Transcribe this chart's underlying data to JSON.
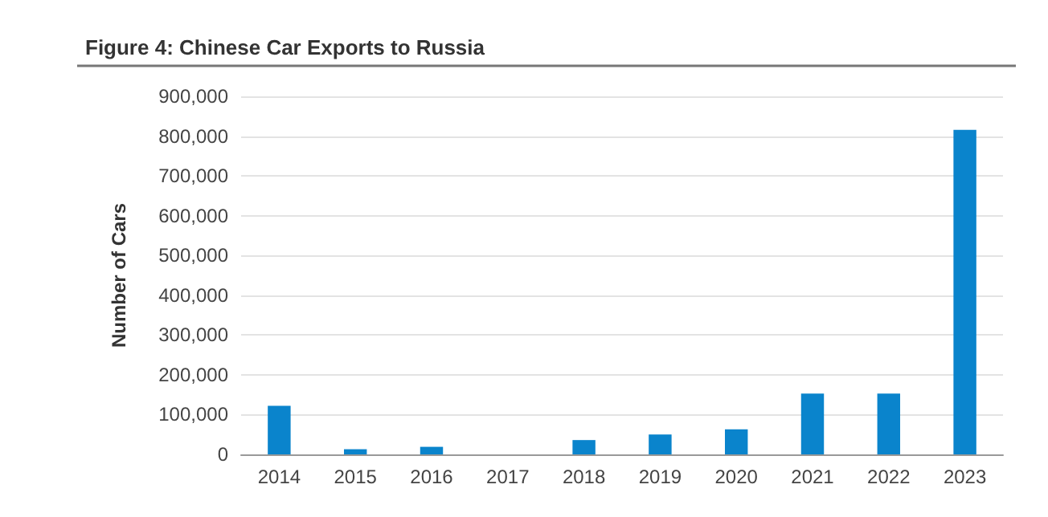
{
  "chart_data": {
    "type": "bar",
    "title": "Figure 4: Chinese Car Exports to Russia",
    "ylabel": "Number of Cars",
    "categories": [
      "2014",
      "2015",
      "2016",
      "2017",
      "2018",
      "2019",
      "2020",
      "2021",
      "2022",
      "2023"
    ],
    "values": [
      122000,
      13000,
      19000,
      0,
      36000,
      50000,
      63000,
      153000,
      153000,
      816000
    ],
    "color": "#0a84cc",
    "ylim": [
      0,
      900000
    ],
    "yticks": [
      0,
      {
        "value": 100000,
        "label": "100,000"
      },
      {
        "value": 200000,
        "label": "200,000"
      },
      {
        "value": 300000,
        "label": "300,000"
      },
      {
        "value": 400000,
        "label": "400,000"
      },
      {
        "value": 500000,
        "label": "500,000"
      },
      {
        "value": 600000,
        "label": "600,000"
      },
      {
        "value": 700000,
        "label": "700,000"
      },
      {
        "value": 800000,
        "label": "800,000"
      },
      {
        "value": 900000,
        "label": "900,000"
      }
    ],
    "grid": "y"
  }
}
